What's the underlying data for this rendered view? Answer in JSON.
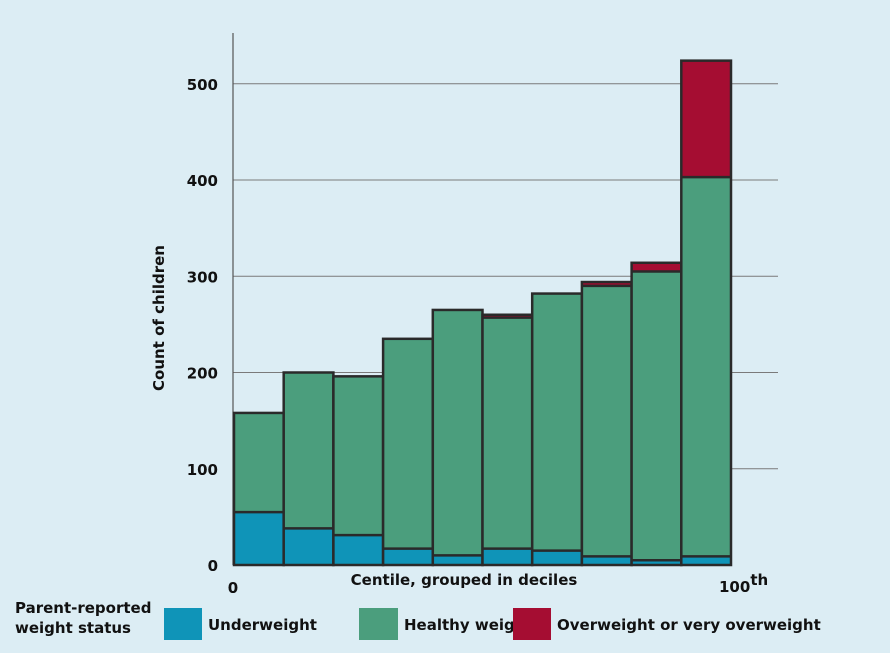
{
  "chart_data": {
    "type": "bar",
    "stacked": true,
    "xlabel": "Centile, grouped in deciles",
    "ylabel": "Count of children",
    "x_tick_labels": [
      "0",
      "100"
    ],
    "x_tick_suffix": "th",
    "ylim": [
      0,
      520
    ],
    "yticks": [
      0,
      100,
      200,
      300,
      400,
      500
    ],
    "grid": true,
    "legend_title": "Parent-reported weight status",
    "legend_title_lines": [
      "Parent-reported",
      "weight status"
    ],
    "categories": [
      "1",
      "2",
      "3",
      "4",
      "5",
      "6",
      "7",
      "8",
      "9",
      "10"
    ],
    "series": [
      {
        "name": "Underweight",
        "color": "#0f94b8",
        "values": [
          55,
          38,
          31,
          17,
          10,
          17,
          15,
          9,
          5,
          9
        ]
      },
      {
        "name": "Healthy weight",
        "color": "#4b9e7d",
        "values": [
          103,
          162,
          165,
          218,
          255,
          240,
          267,
          281,
          300,
          394
        ]
      },
      {
        "name": "Overweight or very overweight",
        "color": "#a50d32",
        "values": [
          0,
          0,
          0,
          0,
          0,
          3,
          0,
          4,
          9,
          121
        ]
      }
    ]
  }
}
